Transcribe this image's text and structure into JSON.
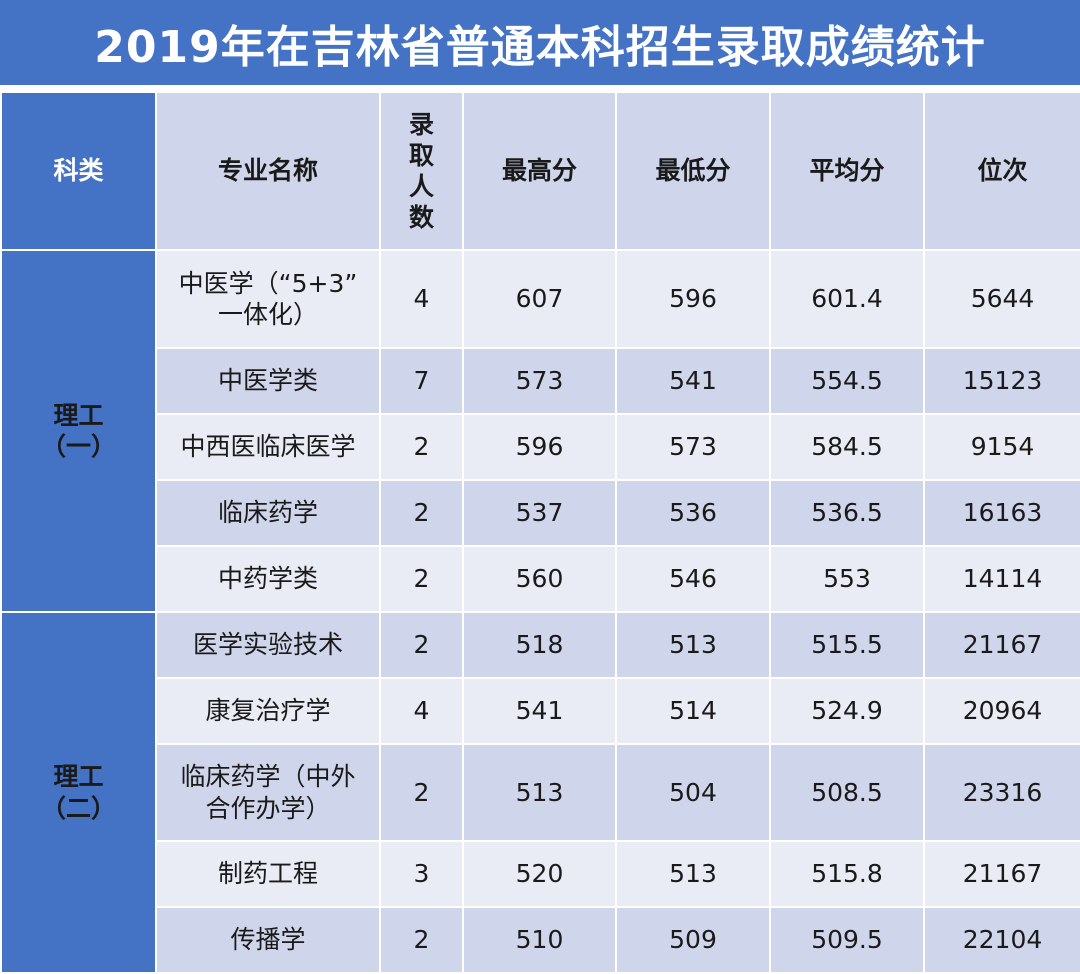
{
  "title": "2019年在吉林省普通本科招生录取成绩统计",
  "headers": {
    "category": "科类",
    "major": "专业名称",
    "enrolled_chars": [
      "录",
      "取",
      "人",
      "数"
    ],
    "max": "最高分",
    "min": "最低分",
    "avg": "平均分",
    "rank": "位次"
  },
  "categories": [
    {
      "label_lines": [
        "理工",
        "（一）"
      ]
    },
    {
      "label_lines": [
        "理工",
        "（二）"
      ]
    }
  ],
  "rows": [
    {
      "major_lines": [
        "中医学（“5+3”",
        "一体化）"
      ],
      "enrolled": "4",
      "max": "607",
      "min": "596",
      "avg": "601.4",
      "rank": "5644"
    },
    {
      "major_lines": [
        "中医学类"
      ],
      "enrolled": "7",
      "max": "573",
      "min": "541",
      "avg": "554.5",
      "rank": "15123"
    },
    {
      "major_lines": [
        "中西医临床医学"
      ],
      "enrolled": "2",
      "max": "596",
      "min": "573",
      "avg": "584.5",
      "rank": "9154"
    },
    {
      "major_lines": [
        "临床药学"
      ],
      "enrolled": "2",
      "max": "537",
      "min": "536",
      "avg": "536.5",
      "rank": "16163"
    },
    {
      "major_lines": [
        "中药学类"
      ],
      "enrolled": "2",
      "max": "560",
      "min": "546",
      "avg": "553",
      "rank": "14114"
    },
    {
      "major_lines": [
        "医学实验技术"
      ],
      "enrolled": "2",
      "max": "518",
      "min": "513",
      "avg": "515.5",
      "rank": "21167"
    },
    {
      "major_lines": [
        "康复治疗学"
      ],
      "enrolled": "4",
      "max": "541",
      "min": "514",
      "avg": "524.9",
      "rank": "20964"
    },
    {
      "major_lines": [
        "临床药学（中外",
        "合作办学）"
      ],
      "enrolled": "2",
      "max": "513",
      "min": "504",
      "avg": "508.5",
      "rank": "23316"
    },
    {
      "major_lines": [
        "制药工程"
      ],
      "enrolled": "3",
      "max": "520",
      "min": "513",
      "avg": "515.8",
      "rank": "21167"
    },
    {
      "major_lines": [
        "传播学"
      ],
      "enrolled": "2",
      "max": "510",
      "min": "509",
      "avg": "509.5",
      "rank": "22104"
    }
  ],
  "colors": {
    "header_blue": "#4472c4",
    "row_light": "#e9ebf5",
    "row_dark": "#cfd5ea"
  }
}
